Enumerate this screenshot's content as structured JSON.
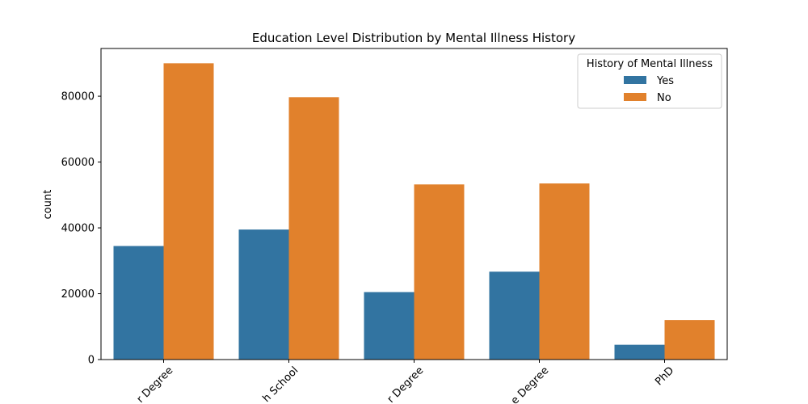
{
  "chart_data": {
    "type": "bar",
    "title": "Education Level Distribution by Mental Illness History",
    "xlabel": "",
    "ylabel": "count",
    "categories": [
      "Bachelor's Degree",
      "High School",
      "Master's Degree",
      "Associate Degree",
      "PhD"
    ],
    "category_labels_visible": [
      "r Degree",
      "h School",
      "r Degree",
      "e Degree",
      "PhD"
    ],
    "series": [
      {
        "name": "Yes",
        "color": "#3274a1",
        "values": [
          34500,
          39500,
          20500,
          26700,
          4500
        ]
      },
      {
        "name": "No",
        "color": "#e1812c",
        "values": [
          90000,
          79700,
          53200,
          53500,
          12000
        ]
      }
    ],
    "ylim": [
      0,
      94500
    ],
    "yticks": [
      0,
      20000,
      40000,
      60000,
      80000
    ],
    "ytick_labels": [
      "0",
      "20000",
      "40000",
      "60000",
      "80000"
    ],
    "legend": {
      "title": "History of Mental Illness",
      "placement": "top-right"
    },
    "grid": false
  }
}
